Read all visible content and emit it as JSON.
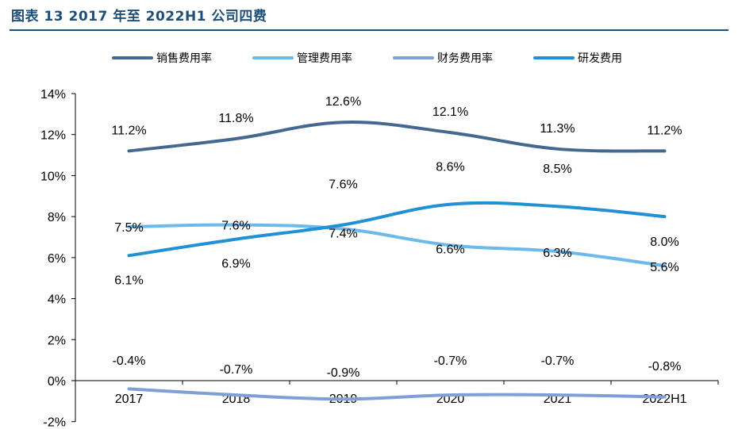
{
  "caption": "图表 13 2017 年至 2022H1 公司四费",
  "chart_data": {
    "type": "line",
    "title": "",
    "xlabel": "",
    "ylabel": "",
    "categories": [
      "2017",
      "2018",
      "2019",
      "2020",
      "2021",
      "2022H1"
    ],
    "ylim": [
      -2,
      14
    ],
    "yticks": [
      -2,
      0,
      2,
      4,
      6,
      8,
      10,
      12,
      14
    ],
    "ytick_labels": [
      "-2%",
      "0%",
      "2%",
      "4%",
      "6%",
      "8%",
      "10%",
      "12%",
      "14%"
    ],
    "grid": false,
    "legend_position": "top",
    "series": [
      {
        "name": "销售费用率",
        "color": "#44688f",
        "values": [
          11.2,
          11.8,
          12.6,
          12.1,
          11.3,
          11.2
        ],
        "labels": [
          "11.2%",
          "11.8%",
          "12.6%",
          "12.1%",
          "11.3%",
          "11.2%"
        ]
      },
      {
        "name": "管理费用率",
        "color": "#6cb9ea",
        "values": [
          7.5,
          7.6,
          7.4,
          6.6,
          6.3,
          5.6
        ],
        "labels": [
          "7.5%",
          "7.6%",
          "7.4%",
          "6.6%",
          "6.3%",
          "5.6%"
        ]
      },
      {
        "name": "财务费用率",
        "color": "#7f9fd6",
        "values": [
          -0.4,
          -0.7,
          -0.9,
          -0.7,
          -0.7,
          -0.8
        ],
        "labels": [
          "-0.4%",
          "-0.7%",
          "-0.9%",
          "-0.7%",
          "-0.7%",
          "-0.8%"
        ]
      },
      {
        "name": "研发费用",
        "color": "#2290d5",
        "values": [
          6.1,
          6.9,
          7.6,
          8.6,
          8.5,
          8.0
        ],
        "labels": [
          "6.1%",
          "6.9%",
          "7.6%",
          "8.6%",
          "8.5%",
          "8.0%"
        ]
      }
    ]
  }
}
